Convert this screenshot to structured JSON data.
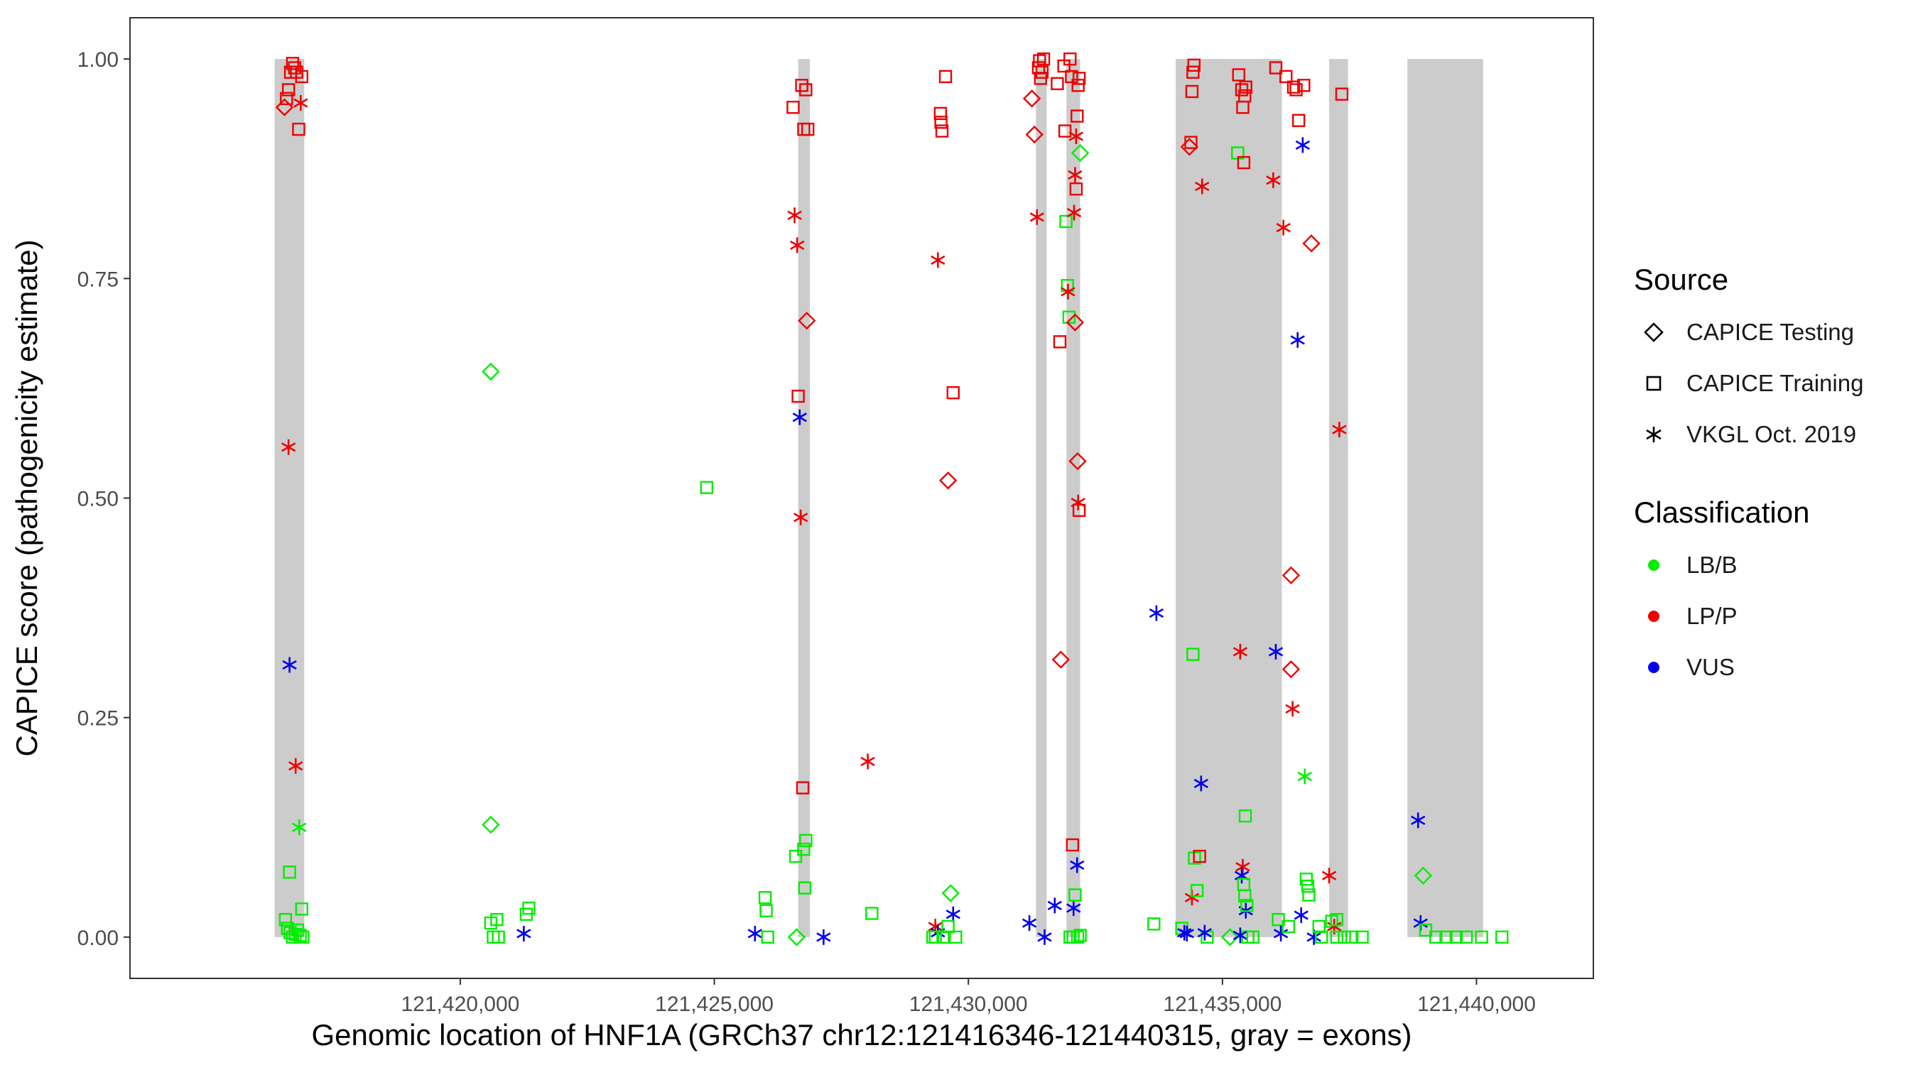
{
  "chart_data": {
    "type": "scatter",
    "xlabel": "Genomic location of HNF1A (GRCh37 chr12:121416346-121440315, gray = exons)",
    "ylabel": "CAPICE score (pathogenicity estimate)",
    "xlim": [
      121413500,
      121442300
    ],
    "ylim": [
      -0.047,
      1.047
    ],
    "x_ticks": [
      121420000,
      121425000,
      121430000,
      121435000,
      121440000
    ],
    "x_tick_labels": [
      "121,420,000",
      "121,425,000",
      "121,430,000",
      "121,435,000",
      "121,440,000"
    ],
    "y_ticks": [
      0,
      0.25,
      0.5,
      0.75,
      1.0
    ],
    "y_tick_labels": [
      "0.00",
      "0.25",
      "0.50",
      "0.75",
      "1.00"
    ],
    "grid": false,
    "exons": [
      [
        121416346,
        121416930
      ],
      [
        121426650,
        121426880
      ],
      [
        121431330,
        121431540
      ],
      [
        121431930,
        121432200
      ],
      [
        121434080,
        121436170
      ],
      [
        121437100,
        121437470
      ],
      [
        121438640,
        121440130
      ]
    ],
    "colors": {
      "LB/B": "#00ee00",
      "LP/P": "#ee0000",
      "VUS": "#0000ee",
      "exon": "#cccccc"
    },
    "legend": {
      "position": "right",
      "source_title": "Source",
      "source_items": [
        {
          "label": "CAPICE Testing",
          "shape": "diamond"
        },
        {
          "label": "CAPICE Training",
          "shape": "square"
        },
        {
          "label": "VKGL Oct. 2019",
          "shape": "asterisk"
        }
      ],
      "class_title": "Classification",
      "class_items": [
        {
          "label": "LB/B",
          "color": "#00ee00"
        },
        {
          "label": "LP/P",
          "color": "#ee0000"
        },
        {
          "label": "VUS",
          "color": "#0000ee"
        }
      ]
    },
    "points": [
      [
        121416540,
        0.945,
        "D",
        "P"
      ],
      [
        121416580,
        0.955,
        "S",
        "P"
      ],
      [
        121416620,
        0.965,
        "S",
        "P"
      ],
      [
        121416660,
        0.985,
        "S",
        "P"
      ],
      [
        121416700,
        0.995,
        "S",
        "P"
      ],
      [
        121416740,
        0.99,
        "S",
        "P"
      ],
      [
        121416780,
        0.985,
        "S",
        "P"
      ],
      [
        121416820,
        0.92,
        "S",
        "P"
      ],
      [
        121416880,
        0.98,
        "S",
        "P"
      ],
      [
        121416860,
        0.95,
        "A",
        "P"
      ],
      [
        121416620,
        0.558,
        "A",
        "P"
      ],
      [
        121416640,
        0.31,
        "A",
        "V"
      ],
      [
        121416760,
        0.195,
        "A",
        "P"
      ],
      [
        121416830,
        0.125,
        "A",
        "G"
      ],
      [
        121416640,
        0.074,
        "S",
        "G"
      ],
      [
        121416560,
        0.02,
        "S",
        "G"
      ],
      [
        121416600,
        0.01,
        "S",
        "G"
      ],
      [
        121416650,
        0.005,
        "S",
        "G"
      ],
      [
        121416700,
        0.0,
        "S",
        "G"
      ],
      [
        121416750,
        0.003,
        "S",
        "G"
      ],
      [
        121416800,
        0.008,
        "S",
        "G"
      ],
      [
        121416850,
        0.002,
        "S",
        "G"
      ],
      [
        121416880,
        0.032,
        "S",
        "G"
      ],
      [
        121416900,
        0.0,
        "S",
        "G"
      ],
      [
        121420600,
        0.644,
        "D",
        "G"
      ],
      [
        121420600,
        0.128,
        "D",
        "G"
      ],
      [
        121420600,
        0.016,
        "S",
        "G"
      ],
      [
        121420650,
        0.0,
        "S",
        "G"
      ],
      [
        121420720,
        0.02,
        "S",
        "G"
      ],
      [
        121420750,
        0.0,
        "S",
        "G"
      ],
      [
        121421250,
        0.004,
        "A",
        "V"
      ],
      [
        121421300,
        0.026,
        "S",
        "G"
      ],
      [
        121421350,
        0.033,
        "S",
        "G"
      ],
      [
        121424850,
        0.512,
        "S",
        "G"
      ],
      [
        121425800,
        0.004,
        "A",
        "V"
      ],
      [
        121426000,
        0.045,
        "S",
        "G"
      ],
      [
        121426020,
        0.03,
        "S",
        "G"
      ],
      [
        121426050,
        0.0,
        "S",
        "G"
      ],
      [
        121426550,
        0.945,
        "S",
        "P"
      ],
      [
        121426580,
        0.822,
        "A",
        "P"
      ],
      [
        121426630,
        0.788,
        "A",
        "P"
      ],
      [
        121426650,
        0.616,
        "S",
        "P"
      ],
      [
        121426680,
        0.592,
        "A",
        "V"
      ],
      [
        121426700,
        0.478,
        "A",
        "P"
      ],
      [
        121426720,
        0.97,
        "S",
        "P"
      ],
      [
        121426740,
        0.17,
        "S",
        "P"
      ],
      [
        121426760,
        0.92,
        "S",
        "P"
      ],
      [
        121426800,
        0.965,
        "S",
        "P"
      ],
      [
        121426820,
        0.702,
        "D",
        "P"
      ],
      [
        121426840,
        0.92,
        "S",
        "P"
      ],
      [
        121426600,
        0.092,
        "S",
        "G"
      ],
      [
        121426620,
        0.0,
        "D",
        "G"
      ],
      [
        121426760,
        0.1,
        "S",
        "G"
      ],
      [
        121426800,
        0.11,
        "S",
        "G"
      ],
      [
        121426780,
        0.056,
        "S",
        "G"
      ],
      [
        121427150,
        0.0,
        "A",
        "V"
      ],
      [
        121428020,
        0.2,
        "A",
        "P"
      ],
      [
        121428100,
        0.027,
        "S",
        "G"
      ],
      [
        121429350,
        0.012,
        "A",
        "P"
      ],
      [
        121429400,
        0.005,
        "A",
        "V"
      ],
      [
        121429300,
        0.0,
        "S",
        "G"
      ],
      [
        121429350,
        0.0,
        "S",
        "G"
      ],
      [
        121429400,
        0.771,
        "A",
        "P"
      ],
      [
        121429450,
        0.938,
        "S",
        "P"
      ],
      [
        121429460,
        0.928,
        "S",
        "P"
      ],
      [
        121429480,
        0.918,
        "S",
        "P"
      ],
      [
        121429550,
        0.98,
        "S",
        "P"
      ],
      [
        121429600,
        0.52,
        "D",
        "P"
      ],
      [
        121429700,
        0.62,
        "S",
        "P"
      ],
      [
        121429650,
        0.05,
        "D",
        "G"
      ],
      [
        121429700,
        0.026,
        "A",
        "V"
      ],
      [
        121429500,
        0.0,
        "S",
        "G"
      ],
      [
        121429750,
        0.0,
        "S",
        "G"
      ],
      [
        121429600,
        0.012,
        "S",
        "G"
      ],
      [
        121431200,
        0.016,
        "A",
        "V"
      ],
      [
        121431250,
        0.955,
        "D",
        "P"
      ],
      [
        121431300,
        0.914,
        "D",
        "P"
      ],
      [
        121431350,
        0.82,
        "A",
        "P"
      ],
      [
        121431380,
        0.99,
        "S",
        "P"
      ],
      [
        121431400,
        0.998,
        "S",
        "P"
      ],
      [
        121431420,
        0.978,
        "S",
        "P"
      ],
      [
        121431450,
        0.985,
        "S",
        "P"
      ],
      [
        121431480,
        1.0,
        "S",
        "P"
      ],
      [
        121431500,
        0.0,
        "A",
        "V"
      ],
      [
        121431700,
        0.036,
        "A",
        "V"
      ],
      [
        121431750,
        0.972,
        "S",
        "P"
      ],
      [
        121431800,
        0.678,
        "S",
        "P"
      ],
      [
        121431820,
        0.316,
        "D",
        "P"
      ],
      [
        121431880,
        0.992,
        "S",
        "P"
      ],
      [
        121431900,
        0.918,
        "S",
        "P"
      ],
      [
        121431920,
        0.815,
        "S",
        "G"
      ],
      [
        121431950,
        0.742,
        "S",
        "G"
      ],
      [
        121431960,
        0.735,
        "A",
        "P"
      ],
      [
        121431980,
        0.706,
        "S",
        "G"
      ],
      [
        121432000,
        1.0,
        "S",
        "P"
      ],
      [
        121432030,
        0.98,
        "S",
        "P"
      ],
      [
        121432050,
        0.105,
        "S",
        "P"
      ],
      [
        121432060,
        0.0,
        "S",
        "G"
      ],
      [
        121432070,
        0.033,
        "A",
        "V"
      ],
      [
        121432080,
        0.825,
        "A",
        "P"
      ],
      [
        121432100,
        0.868,
        "A",
        "P"
      ],
      [
        121432120,
        0.912,
        "A",
        "P"
      ],
      [
        121432140,
        0.082,
        "A",
        "V"
      ],
      [
        121432150,
        0.542,
        "D",
        "P"
      ],
      [
        121432160,
        0.495,
        "A",
        "P"
      ],
      [
        121432180,
        0.486,
        "S",
        "P"
      ],
      [
        121432200,
        0.893,
        "D",
        "G"
      ],
      [
        121432100,
        0.7,
        "D",
        "P"
      ],
      [
        121432120,
        0.852,
        "S",
        "P"
      ],
      [
        121432140,
        0.935,
        "S",
        "P"
      ],
      [
        121432160,
        0.97,
        "S",
        "P"
      ],
      [
        121432180,
        0.978,
        "S",
        "P"
      ],
      [
        121432100,
        0.048,
        "S",
        "G"
      ],
      [
        121432150,
        0.0,
        "S",
        "G"
      ],
      [
        121432200,
        0.002,
        "S",
        "G"
      ],
      [
        121432000,
        0.0,
        "S",
        "G"
      ],
      [
        121433650,
        0.015,
        "S",
        "G"
      ],
      [
        121433700,
        0.369,
        "A",
        "V"
      ],
      [
        121434200,
        0.01,
        "S",
        "G"
      ],
      [
        121434250,
        0.005,
        "A",
        "V"
      ],
      [
        121434300,
        0.004,
        "A",
        "V"
      ],
      [
        121434400,
        0.045,
        "A",
        "P"
      ],
      [
        121434350,
        0.9,
        "D",
        "P"
      ],
      [
        121434380,
        0.905,
        "S",
        "P"
      ],
      [
        121434400,
        0.963,
        "S",
        "P"
      ],
      [
        121434420,
        0.985,
        "S",
        "P"
      ],
      [
        121434440,
        0.993,
        "S",
        "P"
      ],
      [
        121434420,
        0.322,
        "S",
        "G"
      ],
      [
        121434450,
        0.09,
        "S",
        "G"
      ],
      [
        121434500,
        0.053,
        "S",
        "G"
      ],
      [
        121434550,
        0.092,
        "S",
        "P"
      ],
      [
        121434600,
        0.855,
        "A",
        "P"
      ],
      [
        121434580,
        0.175,
        "A",
        "V"
      ],
      [
        121434700,
        0.0,
        "S",
        "G"
      ],
      [
        121434650,
        0.005,
        "A",
        "V"
      ],
      [
        121435150,
        0.0,
        "D",
        "G"
      ],
      [
        121435300,
        0.893,
        "S",
        "G"
      ],
      [
        121435320,
        0.982,
        "S",
        "P"
      ],
      [
        121435350,
        0.325,
        "A",
        "P"
      ],
      [
        121435380,
        0.965,
        "S",
        "P"
      ],
      [
        121435400,
        0.945,
        "S",
        "P"
      ],
      [
        121435420,
        0.882,
        "S",
        "P"
      ],
      [
        121435440,
        0.958,
        "S",
        "P"
      ],
      [
        121435460,
        0.968,
        "S",
        "P"
      ],
      [
        121435400,
        0.08,
        "A",
        "P"
      ],
      [
        121435380,
        0.07,
        "A",
        "V"
      ],
      [
        121435450,
        0.138,
        "S",
        "G"
      ],
      [
        121435420,
        0.06,
        "S",
        "G"
      ],
      [
        121435440,
        0.047,
        "S",
        "G"
      ],
      [
        121435460,
        0.03,
        "A",
        "V"
      ],
      [
        121435480,
        0.036,
        "S",
        "G"
      ],
      [
        121435500,
        0.0,
        "S",
        "G"
      ],
      [
        121435350,
        0.002,
        "A",
        "V"
      ],
      [
        121435600,
        0.0,
        "S",
        "G"
      ],
      [
        121436000,
        0.862,
        "A",
        "P"
      ],
      [
        121436050,
        0.99,
        "S",
        "P"
      ],
      [
        121436050,
        0.325,
        "A",
        "V"
      ],
      [
        121436100,
        0.02,
        "S",
        "G"
      ],
      [
        121436150,
        0.004,
        "A",
        "V"
      ],
      [
        121436200,
        0.808,
        "A",
        "P"
      ],
      [
        121436250,
        0.98,
        "S",
        "P"
      ],
      [
        121436300,
        0.012,
        "S",
        "G"
      ],
      [
        121436350,
        0.412,
        "D",
        "P"
      ],
      [
        121436350,
        0.305,
        "D",
        "P"
      ],
      [
        121436380,
        0.26,
        "A",
        "P"
      ],
      [
        121436400,
        0.968,
        "S",
        "P"
      ],
      [
        121436450,
        0.965,
        "S",
        "P"
      ],
      [
        121436480,
        0.68,
        "A",
        "V"
      ],
      [
        121436500,
        0.93,
        "S",
        "P"
      ],
      [
        121436550,
        0.025,
        "A",
        "V"
      ],
      [
        121436580,
        0.902,
        "A",
        "V"
      ],
      [
        121436600,
        0.97,
        "S",
        "P"
      ],
      [
        121436620,
        0.183,
        "A",
        "G"
      ],
      [
        121436650,
        0.066,
        "S",
        "G"
      ],
      [
        121436680,
        0.058,
        "S",
        "G"
      ],
      [
        121436700,
        0.048,
        "S",
        "G"
      ],
      [
        121436750,
        0.79,
        "D",
        "P"
      ],
      [
        121436800,
        0.0,
        "A",
        "V"
      ],
      [
        121436900,
        0.012,
        "S",
        "G"
      ],
      [
        121436950,
        0.0,
        "S",
        "G"
      ],
      [
        121437100,
        0.07,
        "A",
        "P"
      ],
      [
        121437150,
        0.018,
        "S",
        "G"
      ],
      [
        121437200,
        0.012,
        "A",
        "P"
      ],
      [
        121437250,
        0.02,
        "S",
        "G"
      ],
      [
        121437300,
        0.578,
        "A",
        "P"
      ],
      [
        121437350,
        0.96,
        "S",
        "P"
      ],
      [
        121437400,
        0.0,
        "S",
        "G"
      ],
      [
        121437550,
        0.0,
        "S",
        "G"
      ],
      [
        121437750,
        0.0,
        "S",
        "G"
      ],
      [
        121437250,
        0.0,
        "S",
        "G"
      ],
      [
        121438850,
        0.133,
        "A",
        "V"
      ],
      [
        121438900,
        0.016,
        "A",
        "V"
      ],
      [
        121438950,
        0.07,
        "D",
        "G"
      ],
      [
        121439000,
        0.008,
        "S",
        "G"
      ],
      [
        121439200,
        0.0,
        "S",
        "G"
      ],
      [
        121439400,
        0.0,
        "S",
        "G"
      ],
      [
        121439600,
        0.0,
        "S",
        "G"
      ],
      [
        121439800,
        0.0,
        "S",
        "G"
      ],
      [
        121440100,
        0.0,
        "S",
        "G"
      ],
      [
        121440500,
        0.0,
        "S",
        "G"
      ]
    ]
  }
}
